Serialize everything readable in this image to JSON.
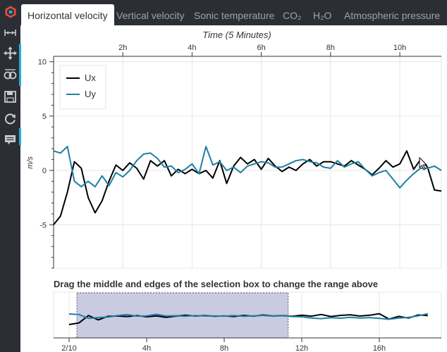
{
  "tabs": [
    {
      "label": "Horizontal velocity",
      "active": true
    },
    {
      "label": "Vertical velocity",
      "active": false
    },
    {
      "label": "Sonic temperature",
      "active": false
    },
    {
      "label": "CO₂",
      "active": false
    },
    {
      "label": "H₂O",
      "active": false
    },
    {
      "label": "Atmospheric pressure",
      "active": false
    }
  ],
  "toolbar": {
    "tools": [
      {
        "name": "xpan-tool-icon",
        "active": false
      },
      {
        "name": "pan-tool-icon",
        "active": true
      },
      {
        "name": "box-zoom-tool-icon",
        "active": false
      },
      {
        "name": "save-tool-icon",
        "active": false
      },
      {
        "name": "reset-tool-icon",
        "active": false
      },
      {
        "name": "hover-tool-icon",
        "active": true
      }
    ]
  },
  "colors": {
    "ux": "#000000",
    "uy": "#1f7fa5",
    "selection": "#c9cbe0",
    "sidebar": "#2b2f35",
    "accent": "#26aae1"
  },
  "overview": {
    "title": "Drag the middle and edges of the selection box to change the range above"
  },
  "chart_data": [
    {
      "type": "line",
      "title": "Time (5 Minutes)",
      "xlabel": "",
      "ylabel": "m/s",
      "xlim": [
        0,
        11.2
      ],
      "ylim": [
        -9,
        10.5
      ],
      "x_ticks": [
        2,
        4,
        6,
        8,
        10
      ],
      "x_tick_labels": [
        "2h",
        "4h",
        "6h",
        "8h",
        "10h"
      ],
      "y_ticks": [
        -5,
        0,
        5,
        10
      ],
      "x_axis_position": "top",
      "grid": true,
      "legend": {
        "position": "top-left",
        "entries": [
          "Ux",
          "Uy"
        ]
      },
      "x": [
        0,
        0.2,
        0.4,
        0.6,
        0.8,
        1,
        1.2,
        1.4,
        1.6,
        1.8,
        2,
        2.2,
        2.4,
        2.6,
        2.8,
        3,
        3.2,
        3.4,
        3.6,
        3.8,
        4,
        4.2,
        4.4,
        4.6,
        4.8,
        5,
        5.2,
        5.4,
        5.6,
        5.8,
        6,
        6.2,
        6.4,
        6.6,
        6.8,
        7,
        7.2,
        7.4,
        7.6,
        7.8,
        8,
        8.2,
        8.4,
        8.6,
        8.8,
        9,
        9.2,
        9.4,
        9.6,
        9.8,
        10,
        10.2,
        10.4,
        10.6,
        10.8,
        11,
        11.2
      ],
      "series": [
        {
          "name": "Ux",
          "values": [
            -5.0,
            -4.2,
            -2.0,
            0.8,
            0.2,
            -2.5,
            -3.9,
            -2.8,
            -1.0,
            0.5,
            0.0,
            0.7,
            0.2,
            -0.8,
            0.9,
            0.4,
            0.9,
            -0.5,
            0.1,
            -0.3,
            0.1,
            -0.3,
            0.0,
            -0.7,
            0.9,
            -1.2,
            0.4,
            1.2,
            0.6,
            1.0,
            0.1,
            1.1,
            0.4,
            -0.1,
            0.3,
            0.0,
            0.6,
            1.0,
            0.4,
            0.8,
            0.8,
            0.6,
            0.4,
            0.9,
            0.5,
            0.1,
            -0.4,
            0.2,
            0.9,
            0.3,
            0.6,
            1.8,
            0.1,
            1.0,
            0.3,
            -1.8,
            -1.9
          ]
        },
        {
          "name": "Uy",
          "values": [
            1.8,
            1.6,
            2.2,
            -1.0,
            -1.5,
            -1.0,
            -1.5,
            -0.5,
            -1.4,
            -0.2,
            -0.6,
            0.0,
            0.9,
            1.5,
            1.6,
            1.1,
            0.3,
            0.4,
            -0.2,
            0.1,
            0.6,
            -0.3,
            2.2,
            0.5,
            0.8,
            0.0,
            0.3,
            -0.2,
            0.4,
            0.6,
            0.8,
            0.7,
            0.3,
            0.3,
            0.6,
            0.9,
            1.0,
            0.8,
            0.7,
            0.3,
            0.2,
            0.9,
            0.3,
            0.6,
            0.8,
            0.1,
            -0.5,
            -0.2,
            0.0,
            -0.8,
            -1.6,
            -0.9,
            -0.3,
            0.2,
            0.2,
            0.4,
            0.0
          ]
        }
      ]
    },
    {
      "type": "line",
      "title": "Drag the middle and edges of the selection box to change the range above",
      "xlim": [
        0,
        19.2
      ],
      "x_ticks": [
        0,
        4,
        8,
        12,
        16
      ],
      "x_tick_labels": [
        "2/10",
        "4h",
        "8h",
        "12h",
        "16h"
      ],
      "selection": [
        0.4,
        11.3
      ],
      "grid": true,
      "x": [
        0,
        0.5,
        1,
        1.5,
        2,
        2.5,
        3,
        3.5,
        4,
        4.5,
        5,
        5.5,
        6,
        6.5,
        7,
        7.5,
        8,
        8.5,
        9,
        9.5,
        10,
        10.5,
        11,
        11.5,
        12,
        12.5,
        13,
        13.5,
        14,
        14.5,
        15,
        15.5,
        16,
        16.5,
        17,
        17.5,
        18,
        18.5
      ],
      "series": [
        {
          "name": "Ux",
          "values": [
            -5.0,
            -4.0,
            0.8,
            -2.0,
            0.3,
            0.5,
            0.2,
            0.8,
            0.0,
            0.6,
            -0.3,
            0.4,
            1.0,
            0.5,
            0.8,
            0.3,
            0.6,
            0.2,
            0.9,
            0.4,
            1.2,
            0.5,
            0.8,
            0.3,
            1.0,
            0.4,
            1.5,
            0.2,
            0.9,
            1.3,
            0.5,
            1.0,
            2.0,
            -1.5,
            0.3,
            -0.8,
            1.2,
            0.8
          ]
        },
        {
          "name": "Uy",
          "values": [
            1.8,
            1.5,
            -1.0,
            -0.5,
            -0.2,
            0.8,
            1.4,
            0.4,
            0.6,
            1.6,
            0.5,
            0.7,
            0.3,
            0.8,
            0.5,
            0.6,
            0.4,
            0.8,
            0.3,
            0.6,
            0.9,
            0.4,
            0.7,
            0.2,
            0.0,
            -0.8,
            -1.2,
            -0.6,
            -0.9,
            -0.3,
            -0.8,
            -0.5,
            -1.0,
            -1.6,
            -0.8,
            -0.4,
            0.6,
            2.0
          ]
        }
      ]
    }
  ]
}
